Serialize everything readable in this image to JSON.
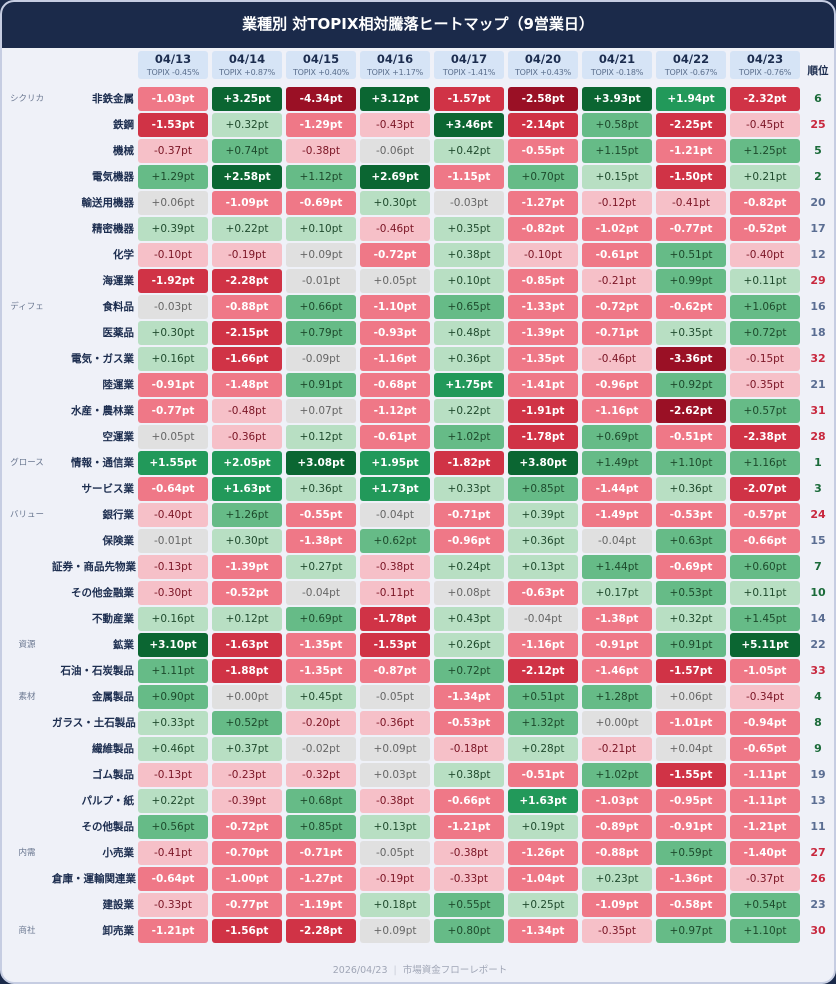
{
  "title": "業種別 対TOPIX相対騰落ヒートマップ（9営業日）",
  "rank_header": "順位",
  "unit_suffix": "pt",
  "colors": {
    "dark_red": "#9a1025",
    "red": "#d03346",
    "medium_red": "#ef7887",
    "light_red": "#f6c0c8",
    "neutral": "#e0e0e0",
    "light_green": "#b8dfc3",
    "medium_green": "#66bb87",
    "green": "#22995a",
    "dark_green": "#0b6632",
    "header_bg": "#1b2a4a",
    "date_header_bg": "#d6e4f6",
    "rank_top": "#1b6b3a",
    "rank_mid": "#5a6d92",
    "rank_bottom": "#c8283e"
  },
  "columns": [
    {
      "date": "04/13",
      "topix": "TOPIX -0.45%"
    },
    {
      "date": "04/14",
      "topix": "TOPIX +0.87%"
    },
    {
      "date": "04/15",
      "topix": "TOPIX +0.40%"
    },
    {
      "date": "04/16",
      "topix": "TOPIX +1.17%"
    },
    {
      "date": "04/17",
      "topix": "TOPIX -1.41%"
    },
    {
      "date": "04/20",
      "topix": "TOPIX +0.43%"
    },
    {
      "date": "04/21",
      "topix": "TOPIX -0.18%"
    },
    {
      "date": "04/22",
      "topix": "TOPIX -0.67%"
    },
    {
      "date": "04/23",
      "topix": "TOPIX -0.76%"
    }
  ],
  "rows": [
    {
      "group": "シクリカ",
      "sector": "非鉄金属",
      "values": [
        "-1.03",
        "+3.25",
        "-4.34",
        "+3.12",
        "-1.57",
        "-2.58",
        "+3.93",
        "+1.94",
        "-2.32"
      ],
      "rank": 6
    },
    {
      "group": "",
      "sector": "鉄鋼",
      "values": [
        "-1.53",
        "+0.32",
        "-1.29",
        "-0.43",
        "+3.46",
        "-2.14",
        "+0.58",
        "-2.25",
        "-0.45"
      ],
      "rank": 25
    },
    {
      "group": "",
      "sector": "機械",
      "values": [
        "-0.37",
        "+0.74",
        "-0.38",
        "-0.06",
        "+0.42",
        "-0.55",
        "+1.15",
        "-1.21",
        "+1.25"
      ],
      "rank": 5
    },
    {
      "group": "",
      "sector": "電気機器",
      "values": [
        "+1.29",
        "+2.58",
        "+1.12",
        "+2.69",
        "-1.15",
        "+0.70",
        "+0.15",
        "-1.50",
        "+0.21"
      ],
      "rank": 2
    },
    {
      "group": "",
      "sector": "輸送用機器",
      "values": [
        "+0.06",
        "-1.09",
        "-0.69",
        "+0.30",
        "-0.03",
        "-1.27",
        "-0.12",
        "-0.41",
        "-0.82"
      ],
      "rank": 20
    },
    {
      "group": "",
      "sector": "精密機器",
      "values": [
        "+0.39",
        "+0.22",
        "+0.10",
        "-0.46",
        "+0.35",
        "-0.82",
        "-1.02",
        "-0.77",
        "-0.52"
      ],
      "rank": 17
    },
    {
      "group": "",
      "sector": "化学",
      "values": [
        "-0.10",
        "-0.19",
        "+0.09",
        "-0.72",
        "+0.38",
        "-0.10",
        "-0.61",
        "+0.51",
        "-0.40"
      ],
      "rank": 12
    },
    {
      "group": "",
      "sector": "海運業",
      "values": [
        "-1.92",
        "-2.28",
        "-0.01",
        "+0.05",
        "+0.10",
        "-0.85",
        "-0.21",
        "+0.99",
        "+0.11"
      ],
      "rank": 29
    },
    {
      "group": "ディフェ",
      "sector": "食料品",
      "values": [
        "-0.03",
        "-0.88",
        "+0.66",
        "-1.10",
        "+0.65",
        "-1.33",
        "-0.72",
        "-0.62",
        "+1.06"
      ],
      "rank": 16
    },
    {
      "group": "",
      "sector": "医薬品",
      "values": [
        "+0.30",
        "-2.15",
        "+0.79",
        "-0.93",
        "+0.48",
        "-1.39",
        "-0.71",
        "+0.35",
        "+0.72"
      ],
      "rank": 18
    },
    {
      "group": "",
      "sector": "電気・ガス業",
      "values": [
        "+0.16",
        "-1.66",
        "-0.09",
        "-1.16",
        "+0.36",
        "-1.35",
        "-0.46",
        "-3.36",
        "-0.15"
      ],
      "rank": 32
    },
    {
      "group": "",
      "sector": "陸運業",
      "values": [
        "-0.91",
        "-1.48",
        "+0.91",
        "-0.68",
        "+1.75",
        "-1.41",
        "-0.96",
        "+0.92",
        "-0.35"
      ],
      "rank": 21
    },
    {
      "group": "",
      "sector": "水産・農林業",
      "values": [
        "-0.77",
        "-0.48",
        "+0.07",
        "-1.12",
        "+0.22",
        "-1.91",
        "-1.16",
        "-2.62",
        "+0.57"
      ],
      "rank": 31
    },
    {
      "group": "",
      "sector": "空運業",
      "values": [
        "+0.05",
        "-0.36",
        "+0.12",
        "-0.61",
        "+1.02",
        "-1.78",
        "+0.69",
        "-0.51",
        "-2.38"
      ],
      "rank": 28
    },
    {
      "group": "グロース",
      "sector": "情報・通信業",
      "values": [
        "+1.55",
        "+2.05",
        "+3.08",
        "+1.95",
        "-1.82",
        "+3.80",
        "+1.49",
        "+1.10",
        "+1.16"
      ],
      "rank": 1
    },
    {
      "group": "",
      "sector": "サービス業",
      "values": [
        "-0.64",
        "+1.63",
        "+0.36",
        "+1.73",
        "+0.33",
        "+0.85",
        "-1.44",
        "+0.36",
        "-2.07"
      ],
      "rank": 3
    },
    {
      "group": "バリュー",
      "sector": "銀行業",
      "values": [
        "-0.40",
        "+1.26",
        "-0.55",
        "-0.04",
        "-0.71",
        "+0.39",
        "-1.49",
        "-0.53",
        "-0.57"
      ],
      "rank": 24
    },
    {
      "group": "",
      "sector": "保険業",
      "values": [
        "-0.01",
        "+0.30",
        "-1.38",
        "+0.62",
        "-0.96",
        "+0.36",
        "-0.04",
        "+0.63",
        "-0.66"
      ],
      "rank": 15
    },
    {
      "group": "",
      "sector": "証券・商品先物業",
      "values": [
        "-0.13",
        "-1.39",
        "+0.27",
        "-0.38",
        "+0.24",
        "+0.13",
        "+1.44",
        "-0.69",
        "+0.60"
      ],
      "rank": 7
    },
    {
      "group": "",
      "sector": "その他金融業",
      "values": [
        "-0.30",
        "-0.52",
        "-0.04",
        "-0.11",
        "+0.08",
        "-0.63",
        "+0.17",
        "+0.53",
        "+0.11"
      ],
      "rank": 10
    },
    {
      "group": "",
      "sector": "不動産業",
      "values": [
        "+0.16",
        "+0.12",
        "+0.69",
        "-1.78",
        "+0.43",
        "-0.04",
        "-1.38",
        "+0.32",
        "+1.45"
      ],
      "rank": 14
    },
    {
      "group": "資源",
      "sector": "鉱業",
      "values": [
        "+3.10",
        "-1.63",
        "-1.35",
        "-1.53",
        "+0.26",
        "-1.16",
        "-0.91",
        "+0.91",
        "+5.11"
      ],
      "rank": 22
    },
    {
      "group": "",
      "sector": "石油・石炭製品",
      "values": [
        "+1.11",
        "-1.88",
        "-1.35",
        "-0.87",
        "+0.72",
        "-2.12",
        "-1.46",
        "-1.57",
        "-1.05"
      ],
      "rank": 33
    },
    {
      "group": "素材",
      "sector": "金属製品",
      "values": [
        "+0.90",
        "+0.00",
        "+0.45",
        "-0.05",
        "-1.34",
        "+0.51",
        "+1.28",
        "+0.06",
        "-0.34"
      ],
      "rank": 4
    },
    {
      "group": "",
      "sector": "ガラス・土石製品",
      "values": [
        "+0.33",
        "+0.52",
        "-0.20",
        "-0.36",
        "-0.53",
        "+1.32",
        "+0.00",
        "-1.01",
        "-0.94"
      ],
      "rank": 8
    },
    {
      "group": "",
      "sector": "繊維製品",
      "values": [
        "+0.46",
        "+0.37",
        "-0.02",
        "+0.09",
        "-0.18",
        "+0.28",
        "-0.21",
        "+0.04",
        "-0.65"
      ],
      "rank": 9
    },
    {
      "group": "",
      "sector": "ゴム製品",
      "values": [
        "-0.13",
        "-0.23",
        "-0.32",
        "+0.03",
        "+0.38",
        "-0.51",
        "+1.02",
        "-1.55",
        "-1.11"
      ],
      "rank": 19
    },
    {
      "group": "",
      "sector": "パルプ・紙",
      "values": [
        "+0.22",
        "-0.39",
        "+0.68",
        "-0.38",
        "-0.66",
        "+1.63",
        "-1.03",
        "-0.95",
        "-1.11"
      ],
      "rank": 13
    },
    {
      "group": "",
      "sector": "その他製品",
      "values": [
        "+0.56",
        "-0.72",
        "+0.85",
        "+0.13",
        "-1.21",
        "+0.19",
        "-0.89",
        "-0.91",
        "-1.21"
      ],
      "rank": 11
    },
    {
      "group": "内需",
      "sector": "小売業",
      "values": [
        "-0.41",
        "-0.70",
        "-0.71",
        "-0.05",
        "-0.38",
        "-1.26",
        "-0.88",
        "+0.59",
        "-1.40"
      ],
      "rank": 27
    },
    {
      "group": "",
      "sector": "倉庫・運輸関連業",
      "values": [
        "-0.64",
        "-1.00",
        "-1.27",
        "-0.19",
        "-0.33",
        "-1.04",
        "+0.23",
        "-1.36",
        "-0.37"
      ],
      "rank": 26
    },
    {
      "group": "",
      "sector": "建設業",
      "values": [
        "-0.33",
        "-0.77",
        "-1.19",
        "+0.18",
        "+0.55",
        "+0.25",
        "-1.09",
        "-0.58",
        "+0.54"
      ],
      "rank": 23
    },
    {
      "group": "商社",
      "sector": "卸売業",
      "values": [
        "-1.21",
        "-1.56",
        "-2.28",
        "+0.09",
        "+0.80",
        "-1.34",
        "-0.35",
        "+0.97",
        "+1.10"
      ],
      "rank": 30
    }
  ],
  "footer": {
    "date": "2026/04/23",
    "separator": "|",
    "source": "市場資金フローレポート"
  },
  "chart_data": {
    "type": "heatmap",
    "title": "業種別 対TOPIX相対騰落ヒートマップ（9営業日）",
    "xlabel": "",
    "ylabel": "",
    "unit": "pt",
    "x": [
      "04/13",
      "04/14",
      "04/15",
      "04/16",
      "04/17",
      "04/20",
      "04/21",
      "04/22",
      "04/23"
    ],
    "x_sublabels": [
      "TOPIX -0.45%",
      "TOPIX +0.87%",
      "TOPIX +0.40%",
      "TOPIX +1.17%",
      "TOPIX -1.41%",
      "TOPIX +0.43%",
      "TOPIX -0.18%",
      "TOPIX -0.67%",
      "TOPIX -0.76%"
    ],
    "y": [
      "非鉄金属",
      "鉄鋼",
      "機械",
      "電気機器",
      "輸送用機器",
      "精密機器",
      "化学",
      "海運業",
      "食料品",
      "医薬品",
      "電気・ガス業",
      "陸運業",
      "水産・農林業",
      "空運業",
      "情報・通信業",
      "サービス業",
      "銀行業",
      "保険業",
      "証券・商品先物業",
      "その他金融業",
      "不動産業",
      "鉱業",
      "石油・石炭製品",
      "金属製品",
      "ガラス・土石製品",
      "繊維製品",
      "ゴム製品",
      "パルプ・紙",
      "その他製品",
      "小売業",
      "倉庫・運輸関連業",
      "建設業",
      "卸売業"
    ],
    "groups": [
      {
        "name": "シクリカ",
        "sectors": [
          "非鉄金属",
          "鉄鋼",
          "機械",
          "電気機器",
          "輸送用機器",
          "精密機器",
          "化学",
          "海運業"
        ]
      },
      {
        "name": "ディフェ",
        "sectors": [
          "食料品",
          "医薬品",
          "電気・ガス業",
          "陸運業",
          "水産・農林業",
          "空運業"
        ]
      },
      {
        "name": "グロース",
        "sectors": [
          "情報・通信業",
          "サービス業"
        ]
      },
      {
        "name": "バリュー",
        "sectors": [
          "銀行業",
          "保険業",
          "証券・商品先物業",
          "その他金融業",
          "不動産業"
        ]
      },
      {
        "name": "資源",
        "sectors": [
          "鉱業",
          "石油・石炭製品"
        ]
      },
      {
        "name": "素材",
        "sectors": [
          "金属製品",
          "ガラス・土石製品",
          "繊維製品",
          "ゴム製品",
          "パルプ・紙",
          "その他製品"
        ]
      },
      {
        "name": "内需",
        "sectors": [
          "小売業",
          "倉庫・運輸関連業",
          "建設業"
        ]
      },
      {
        "name": "商社",
        "sectors": [
          "卸売業"
        ]
      }
    ],
    "values": [
      [
        -1.03,
        3.25,
        -4.34,
        3.12,
        -1.57,
        -2.58,
        3.93,
        1.94,
        -2.32
      ],
      [
        -1.53,
        0.32,
        -1.29,
        -0.43,
        3.46,
        -2.14,
        0.58,
        -2.25,
        -0.45
      ],
      [
        -0.37,
        0.74,
        -0.38,
        -0.06,
        0.42,
        -0.55,
        1.15,
        -1.21,
        1.25
      ],
      [
        1.29,
        2.58,
        1.12,
        2.69,
        -1.15,
        0.7,
        0.15,
        -1.5,
        0.21
      ],
      [
        0.06,
        -1.09,
        -0.69,
        0.3,
        -0.03,
        -1.27,
        -0.12,
        -0.41,
        -0.82
      ],
      [
        0.39,
        0.22,
        0.1,
        -0.46,
        0.35,
        -0.82,
        -1.02,
        -0.77,
        -0.52
      ],
      [
        -0.1,
        -0.19,
        0.09,
        -0.72,
        0.38,
        -0.1,
        -0.61,
        0.51,
        -0.4
      ],
      [
        -1.92,
        -2.28,
        -0.01,
        0.05,
        0.1,
        -0.85,
        -0.21,
        0.99,
        0.11
      ],
      [
        -0.03,
        -0.88,
        0.66,
        -1.1,
        0.65,
        -1.33,
        -0.72,
        -0.62,
        1.06
      ],
      [
        0.3,
        -2.15,
        0.79,
        -0.93,
        0.48,
        -1.39,
        -0.71,
        0.35,
        0.72
      ],
      [
        0.16,
        -1.66,
        -0.09,
        -1.16,
        0.36,
        -1.35,
        -0.46,
        -3.36,
        -0.15
      ],
      [
        -0.91,
        -1.48,
        0.91,
        -0.68,
        1.75,
        -1.41,
        -0.96,
        0.92,
        -0.35
      ],
      [
        -0.77,
        -0.48,
        0.07,
        -1.12,
        0.22,
        -1.91,
        -1.16,
        -2.62,
        0.57
      ],
      [
        0.05,
        -0.36,
        0.12,
        -0.61,
        1.02,
        -1.78,
        0.69,
        -0.51,
        -2.38
      ],
      [
        1.55,
        2.05,
        3.08,
        1.95,
        -1.82,
        3.8,
        1.49,
        1.1,
        1.16
      ],
      [
        -0.64,
        1.63,
        0.36,
        1.73,
        0.33,
        0.85,
        -1.44,
        0.36,
        -2.07
      ],
      [
        -0.4,
        1.26,
        -0.55,
        -0.04,
        -0.71,
        0.39,
        -1.49,
        -0.53,
        -0.57
      ],
      [
        -0.01,
        0.3,
        -1.38,
        0.62,
        -0.96,
        0.36,
        -0.04,
        0.63,
        -0.66
      ],
      [
        -0.13,
        -1.39,
        0.27,
        -0.38,
        0.24,
        0.13,
        1.44,
        -0.69,
        0.6
      ],
      [
        -0.3,
        -0.52,
        -0.04,
        -0.11,
        0.08,
        -0.63,
        0.17,
        0.53,
        0.11
      ],
      [
        0.16,
        0.12,
        0.69,
        -1.78,
        0.43,
        -0.04,
        -1.38,
        0.32,
        1.45
      ],
      [
        3.1,
        -1.63,
        -1.35,
        -1.53,
        0.26,
        -1.16,
        -0.91,
        0.91,
        5.11
      ],
      [
        1.11,
        -1.88,
        -1.35,
        -0.87,
        0.72,
        -2.12,
        -1.46,
        -1.57,
        -1.05
      ],
      [
        0.9,
        0.0,
        0.45,
        -0.05,
        -1.34,
        0.51,
        1.28,
        0.06,
        -0.34
      ],
      [
        0.33,
        0.52,
        -0.2,
        -0.36,
        -0.53,
        1.32,
        0.0,
        -1.01,
        -0.94
      ],
      [
        0.46,
        0.37,
        -0.02,
        0.09,
        -0.18,
        0.28,
        -0.21,
        0.04,
        -0.65
      ],
      [
        -0.13,
        -0.23,
        -0.32,
        0.03,
        0.38,
        -0.51,
        1.02,
        -1.55,
        -1.11
      ],
      [
        0.22,
        -0.39,
        0.68,
        -0.38,
        -0.66,
        1.63,
        -1.03,
        -0.95,
        -1.11
      ],
      [
        0.56,
        -0.72,
        0.85,
        0.13,
        -1.21,
        0.19,
        -0.89,
        -0.91,
        -1.21
      ],
      [
        -0.41,
        -0.7,
        -0.71,
        -0.05,
        -0.38,
        -1.26,
        -0.88,
        0.59,
        -1.4
      ],
      [
        -0.64,
        -1.0,
        -1.27,
        -0.19,
        -0.33,
        -1.04,
        0.23,
        -1.36,
        -0.37
      ],
      [
        -0.33,
        -0.77,
        -1.19,
        0.18,
        0.55,
        0.25,
        -1.09,
        -0.58,
        0.54
      ],
      [
        -1.21,
        -1.56,
        -2.28,
        0.09,
        0.8,
        -1.34,
        -0.35,
        0.97,
        1.1
      ]
    ],
    "ranks": [
      6,
      25,
      5,
      2,
      20,
      17,
      12,
      29,
      16,
      18,
      32,
      21,
      31,
      28,
      1,
      3,
      24,
      15,
      7,
      10,
      14,
      22,
      33,
      4,
      8,
      9,
      19,
      13,
      11,
      27,
      26,
      23,
      30
    ],
    "color_scale": {
      "thresholds": [
        -2.5,
        -1.5,
        -0.5,
        -0.1,
        0.1,
        0.5,
        1.5,
        2.5
      ],
      "colors": [
        "#9a1025",
        "#d03346",
        "#ef7887",
        "#f6c0c8",
        "#e0e0e0",
        "#b8dfc3",
        "#66bb87",
        "#22995a",
        "#0b6632"
      ]
    },
    "legend": "none",
    "grid": false
  }
}
